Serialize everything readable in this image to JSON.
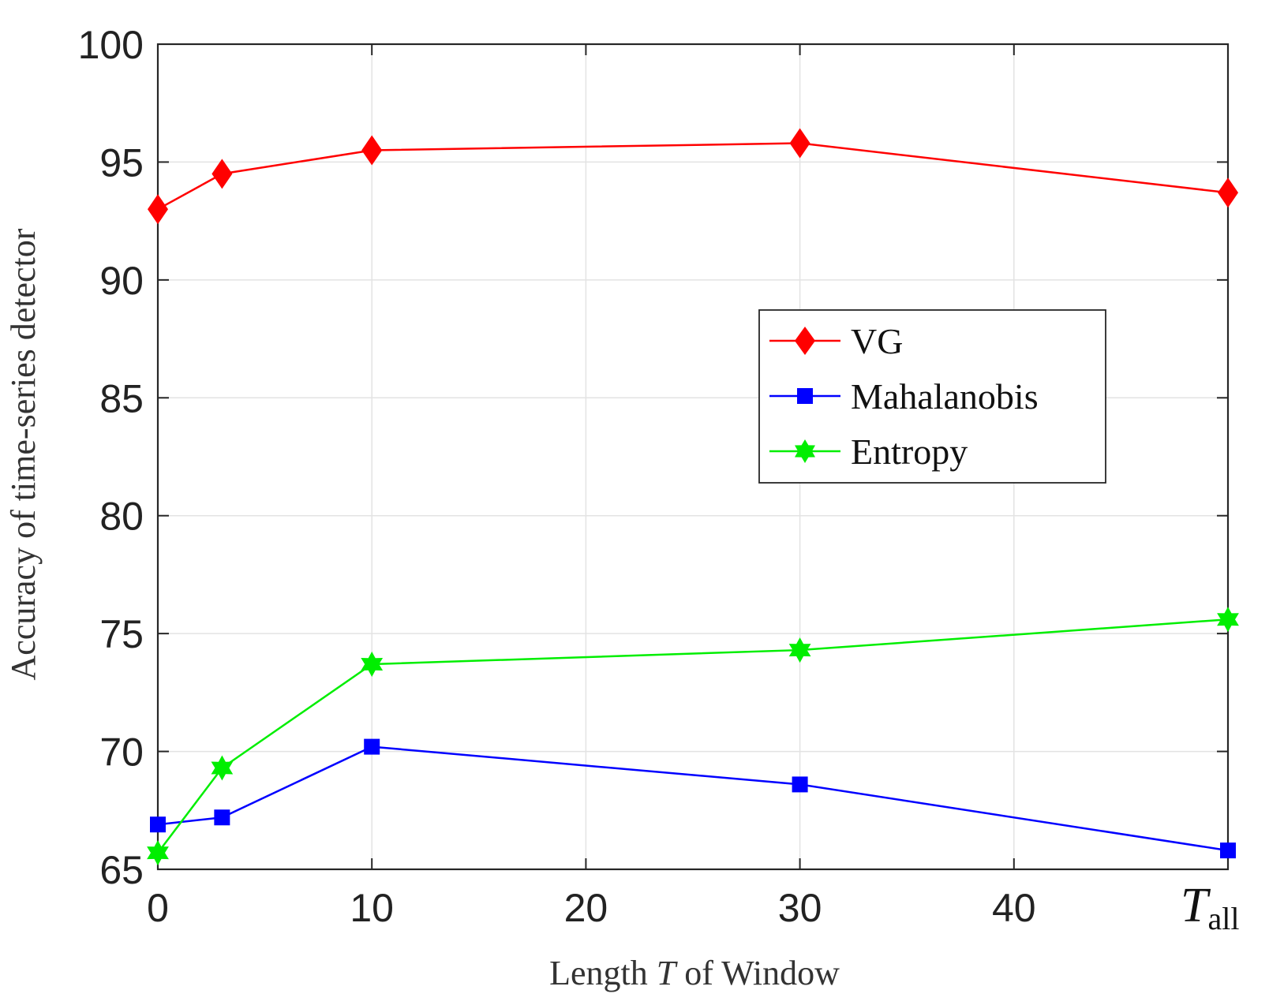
{
  "chart_data": {
    "type": "line",
    "xlabel_parts": [
      "Length ",
      "T",
      " of Window"
    ],
    "ylabel": "Accuracy of time-series detector",
    "xlim": [
      0,
      50
    ],
    "ylim": [
      65,
      100
    ],
    "x_ticks": [
      {
        "value": 0,
        "label": "0"
      },
      {
        "value": 10,
        "label": "10"
      },
      {
        "value": 20,
        "label": "20"
      },
      {
        "value": 30,
        "label": "30"
      },
      {
        "value": 40,
        "label": "40"
      }
    ],
    "x_last_tick": {
      "value": 50,
      "main": "T",
      "sub": "all"
    },
    "y_ticks": [
      65,
      70,
      75,
      80,
      85,
      90,
      95,
      100
    ],
    "grid": true,
    "legend_position": "center-right",
    "series": [
      {
        "name": "VG",
        "color": "#ff0000",
        "marker": "diamond",
        "x": [
          0,
          3,
          10,
          30,
          50
        ],
        "values": [
          93.0,
          94.5,
          95.5,
          95.8,
          93.7
        ]
      },
      {
        "name": "Mahalanobis",
        "color": "#0000ff",
        "marker": "square",
        "x": [
          0,
          3,
          10,
          30,
          50
        ],
        "values": [
          66.9,
          67.2,
          70.2,
          68.6,
          65.8
        ]
      },
      {
        "name": "Entropy",
        "color": "#00ee00",
        "marker": "star",
        "x": [
          0,
          3,
          10,
          30,
          50
        ],
        "values": [
          65.7,
          69.3,
          73.7,
          74.3,
          75.6
        ]
      }
    ]
  }
}
